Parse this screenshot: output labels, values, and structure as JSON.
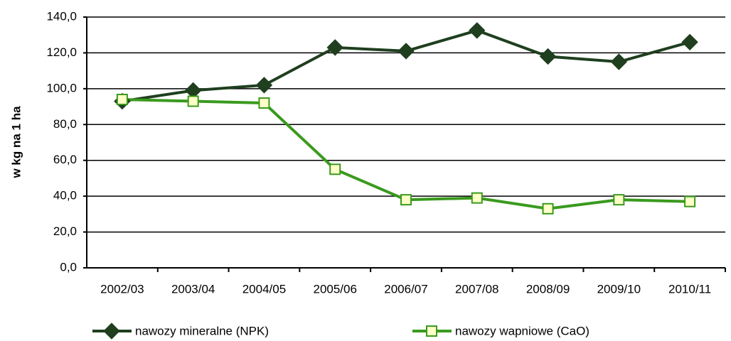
{
  "chart_data": {
    "type": "line",
    "y_label": "w kg na 1 ha",
    "categories": [
      "2002/03",
      "2003/04",
      "2004/05",
      "2005/06",
      "2006/07",
      "2007/08",
      "2008/09",
      "2009/10",
      "2010/11"
    ],
    "series": [
      {
        "name": "nawozy mineralne (NPK)",
        "color": "#1f3f1f",
        "marker": "diamond",
        "marker_fill": "#1f3f1f",
        "values": [
          93,
          99,
          102,
          123,
          121,
          132.5,
          118,
          115,
          126
        ]
      },
      {
        "name": "nawozy wapniowe (CaO)",
        "color": "#3a9a1e",
        "marker": "square",
        "marker_fill": "#ffffc8",
        "values": [
          94,
          93,
          92,
          55,
          38,
          39,
          33,
          38,
          37
        ]
      }
    ],
    "ylim": [
      0,
      140
    ],
    "yticks": [
      {
        "value": 0,
        "label": "0,0"
      },
      {
        "value": 20,
        "label": "20,0"
      },
      {
        "value": 40,
        "label": "40,0"
      },
      {
        "value": 60,
        "label": "60,0"
      },
      {
        "value": 80,
        "label": "80,0"
      },
      {
        "value": 100,
        "label": "100,0"
      },
      {
        "value": 120,
        "label": "120,0"
      },
      {
        "value": 140,
        "label": "140,0"
      }
    ],
    "grid": true,
    "legend": "bottom"
  }
}
